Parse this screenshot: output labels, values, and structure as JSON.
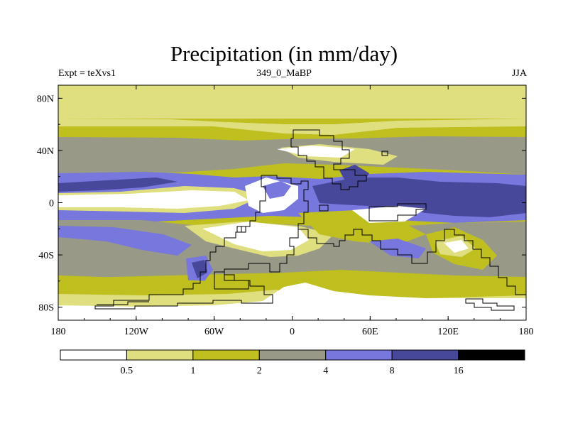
{
  "title": "Precipitation (in mm/day)",
  "subtitle_left": "Expt = teXvs1",
  "subtitle_center": "349_0_MaBP",
  "subtitle_right": "JJA",
  "colors": {
    "c0": "#ffffff",
    "c1": "#dfdf7f",
    "c2": "#bfbf1f",
    "c3": "#999988",
    "c4": "#7777dd",
    "c5": "#48489a",
    "c6": "#000000",
    "coast": "#000000"
  },
  "map_data": {
    "projection": "cylindrical-equidistant",
    "field": "precipitation",
    "units": "mm/day",
    "lon_range": [
      -180,
      180
    ],
    "lat_range": [
      -90,
      90
    ],
    "lon_ticks": [
      {
        "value": -180,
        "label": "180"
      },
      {
        "value": -120,
        "label": "120W"
      },
      {
        "value": -60,
        "label": "60W"
      },
      {
        "value": 0,
        "label": "0"
      },
      {
        "value": 60,
        "label": "60E"
      },
      {
        "value": 120,
        "label": "120E"
      },
      {
        "value": 180,
        "label": "180"
      }
    ],
    "lat_ticks": [
      {
        "value": 80,
        "label": "80N"
      },
      {
        "value": 40,
        "label": "40N"
      },
      {
        "value": 0,
        "label": "0"
      },
      {
        "value": -40,
        "label": "40S"
      },
      {
        "value": -80,
        "label": "80S"
      }
    ],
    "colorbar": {
      "levels": [
        "0.5",
        "1",
        "2",
        "4",
        "8",
        "16"
      ],
      "colors": [
        "#ffffff",
        "#dfdf7f",
        "#bfbf1f",
        "#999988",
        "#7777dd",
        "#48489a",
        "#000000"
      ]
    }
  }
}
